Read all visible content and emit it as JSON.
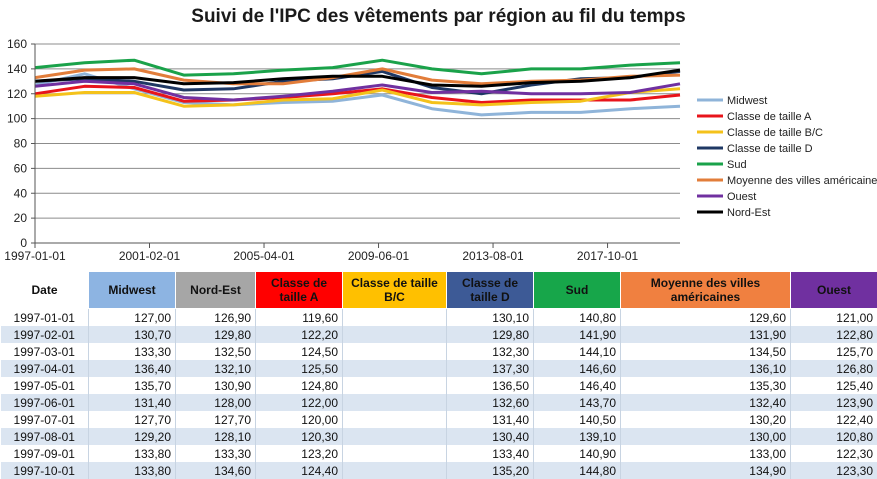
{
  "chart_data": {
    "type": "line",
    "title": "Suivi de l'IPC des vêtements par région au fil du temps",
    "ylim": [
      0,
      160
    ],
    "yticks": [
      "0",
      "20",
      "40",
      "60",
      "80",
      "100",
      "120",
      "140",
      "160"
    ],
    "xticks": [
      "1997-01-01",
      "2001-02-01",
      "2005-04-01",
      "2009-06-01",
      "2013-08-01",
      "2017-10-01"
    ],
    "x_span_months": 276,
    "legend_position": "right",
    "grid": "horizontal",
    "series": [
      {
        "name": "Midwest",
        "color": "#8fb4d9",
        "values": [
          127,
          136,
          124,
          113,
          111,
          113,
          114,
          119,
          108,
          103,
          105,
          105,
          108,
          110
        ]
      },
      {
        "name": "Classe de taille A",
        "color": "#e8141b",
        "values": [
          120,
          126,
          125,
          114,
          115,
          117,
          120,
          124,
          117,
          113,
          115,
          115,
          115,
          119
        ]
      },
      {
        "name": "Classe de taille B/C",
        "color": "#f4c21b",
        "values": [
          118,
          121,
          121,
          110,
          111,
          115,
          116,
          123,
          113,
          111,
          113,
          114,
          121,
          124
        ]
      },
      {
        "name": "Classe de taille D",
        "color": "#1f3864",
        "values": [
          130,
          132,
          130,
          123,
          124,
          130,
          132,
          138,
          125,
          120,
          127,
          132,
          133,
          138
        ]
      },
      {
        "name": "Sud",
        "color": "#1aa24a",
        "values": [
          141,
          145,
          147,
          135,
          136,
          139,
          141,
          147,
          140,
          136,
          140,
          140,
          143,
          145
        ]
      },
      {
        "name": "Moyenne des villes américaines",
        "color": "#e27d3a",
        "values": [
          133,
          139,
          140,
          131,
          128,
          128,
          133,
          140,
          131,
          128,
          130,
          131,
          134,
          135
        ]
      },
      {
        "name": "Ouest",
        "color": "#7030a0",
        "values": [
          126,
          130,
          128,
          117,
          115,
          118,
          122,
          127,
          121,
          122,
          120,
          120,
          121,
          128
        ]
      },
      {
        "name": "Nord-Est",
        "color": "#000000",
        "values": [
          130,
          133,
          133,
          128,
          129,
          132,
          134,
          134,
          127,
          126,
          129,
          130,
          133,
          139
        ]
      }
    ]
  },
  "table": {
    "headers": [
      {
        "label": "Date",
        "bg": "#ffffff"
      },
      {
        "label": "Midwest",
        "bg": "#8db4e2"
      },
      {
        "label": "Nord-Est",
        "bg": "#a6a6a6"
      },
      {
        "label": "Classe de taille A",
        "bg": "#ff0000"
      },
      {
        "label": "Classe de taille B/C",
        "bg": "#ffc000"
      },
      {
        "label": "Classe de taille D",
        "bg": "#3d5a96"
      },
      {
        "label": "Sud",
        "bg": "#17a64a"
      },
      {
        "label": "Moyenne des villes américaines",
        "bg": "#f08040"
      },
      {
        "label": "Ouest",
        "bg": "#7030a0"
      }
    ],
    "rows": [
      [
        "1997-01-01",
        "127,00",
        "126,90",
        "119,60",
        "",
        "130,10",
        "140,80",
        "129,60",
        "121,00"
      ],
      [
        "1997-02-01",
        "130,70",
        "129,80",
        "122,20",
        "",
        "129,80",
        "141,90",
        "131,90",
        "122,80"
      ],
      [
        "1997-03-01",
        "133,30",
        "132,50",
        "124,50",
        "",
        "132,30",
        "144,10",
        "134,50",
        "125,70"
      ],
      [
        "1997-04-01",
        "136,40",
        "132,10",
        "125,50",
        "",
        "137,30",
        "146,60",
        "136,10",
        "126,80"
      ],
      [
        "1997-05-01",
        "135,70",
        "130,90",
        "124,80",
        "",
        "136,50",
        "146,40",
        "135,30",
        "125,40"
      ],
      [
        "1997-06-01",
        "131,40",
        "128,00",
        "122,00",
        "",
        "132,60",
        "143,70",
        "132,40",
        "123,90"
      ],
      [
        "1997-07-01",
        "127,70",
        "127,70",
        "120,00",
        "",
        "131,40",
        "140,50",
        "130,20",
        "122,40"
      ],
      [
        "1997-08-01",
        "129,20",
        "128,10",
        "120,30",
        "",
        "130,40",
        "139,10",
        "130,00",
        "120,80"
      ],
      [
        "1997-09-01",
        "133,80",
        "133,30",
        "123,20",
        "",
        "133,40",
        "140,90",
        "133,00",
        "122,30"
      ],
      [
        "1997-10-01",
        "133,80",
        "134,60",
        "124,40",
        "",
        "135,20",
        "144,80",
        "134,90",
        "123,30"
      ]
    ]
  }
}
